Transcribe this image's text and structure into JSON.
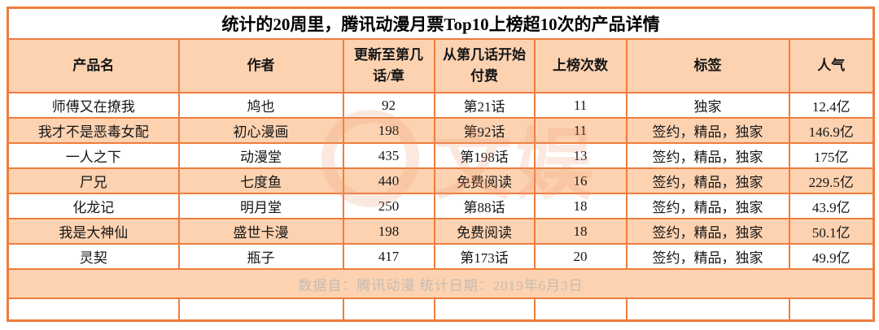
{
  "title": "统计的20周里，腾讯动漫月票Top10上榜超10次的产品详情",
  "table": {
    "headers": [
      "产品名",
      "作者",
      "更新至第几话/章",
      "从第几话开始付费",
      "上榜次数",
      "标签",
      "人气"
    ],
    "rows": [
      [
        "师傅又在撩我",
        "鸠也",
        "92",
        "第21话",
        "11",
        "独家",
        "12.4亿"
      ],
      [
        "我才不是恶毒女配",
        "初心漫画",
        "198",
        "第92话",
        "11",
        "签约，精品，独家",
        "146.9亿"
      ],
      [
        "一人之下",
        "动漫堂",
        "435",
        "第198话",
        "13",
        "签约，精品，独家",
        "175亿"
      ],
      [
        "尸兄",
        "七度鱼",
        "440",
        "免费阅读",
        "16",
        "签约，精品，独家",
        "229.5亿"
      ],
      [
        "化龙记",
        "明月堂",
        "250",
        "第88话",
        "18",
        "签约，精品，独家",
        "43.9亿"
      ],
      [
        "我是大神仙",
        "盛世卡漫",
        "198",
        "免费阅读",
        "18",
        "签约，精品，独家",
        "50.1亿"
      ],
      [
        "灵契",
        "瓶子",
        "417",
        "第173话",
        "20",
        "签约，精品，独家",
        "49.9亿"
      ]
    ]
  },
  "footer": "数据自：腾讯动漫  统计日期：2019年6月3日",
  "watermark": {
    "text": "文娱"
  },
  "colors": {
    "border": "#ee7d3d",
    "header_bg": "#fcd2b1",
    "footer_text": "#c4bdb4"
  },
  "chart_data": {
    "type": "table",
    "title": "统计的20周里，腾讯动漫月票Top10上榜超10次的产品详情",
    "columns": [
      "产品名",
      "作者",
      "更新至第几话/章",
      "从第几话开始付费",
      "上榜次数",
      "标签",
      "人气"
    ],
    "rows": [
      [
        "师傅又在撩我",
        "鸠也",
        92,
        "第21话",
        11,
        "独家",
        "12.4亿"
      ],
      [
        "我才不是恶毒女配",
        "初心漫画",
        198,
        "第92话",
        11,
        "签约，精品，独家",
        "146.9亿"
      ],
      [
        "一人之下",
        "动漫堂",
        435,
        "第198话",
        13,
        "签约，精品，独家",
        "175亿"
      ],
      [
        "尸兄",
        "七度鱼",
        440,
        "免费阅读",
        16,
        "签约，精品，独家",
        "229.5亿"
      ],
      [
        "化龙记",
        "明月堂",
        250,
        "第88话",
        18,
        "签约，精品，独家",
        "43.9亿"
      ],
      [
        "我是大神仙",
        "盛世卡漫",
        198,
        "免费阅读",
        18,
        "签约，精品，独家",
        "50.1亿"
      ],
      [
        "灵契",
        "瓶子",
        417,
        "第173话",
        20,
        "签约，精品，独家",
        "49.9亿"
      ]
    ],
    "footnote": "数据自：腾讯动漫  统计日期：2019年6月3日"
  }
}
